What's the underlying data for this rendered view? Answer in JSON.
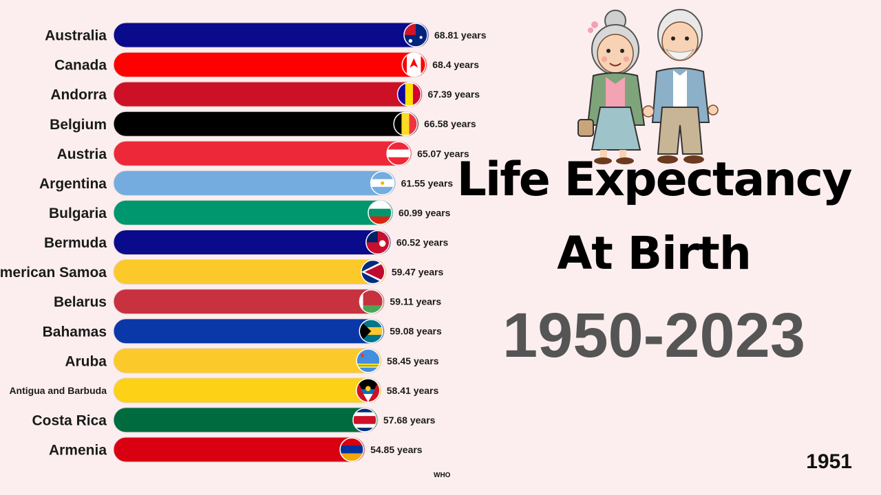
{
  "chart_data": {
    "type": "bar",
    "orientation": "horizontal",
    "title": "Life Expectancy At Birth",
    "title_line1": "Life Expectancy",
    "title_line2": "At Birth",
    "period": "1950-2023",
    "current_year": "1951",
    "source": "WHO",
    "unit_suffix": "years",
    "xlim": [
      0,
      68.81
    ],
    "grid": false,
    "legend": "none",
    "bars": [
      {
        "country": "Australia",
        "value": 68.81,
        "label": "68.81 years",
        "color": "#0a0a8c",
        "flag": "australia"
      },
      {
        "country": "Canada",
        "value": 68.4,
        "label": "68.4 years",
        "color": "#ff0000",
        "flag": "canada"
      },
      {
        "country": "Andorra",
        "value": 67.39,
        "label": "67.39 years",
        "color": "#cc1126",
        "flag": "andorra"
      },
      {
        "country": "Belgium",
        "value": 66.58,
        "label": "66.58 years",
        "color": "#000000",
        "flag": "belgium"
      },
      {
        "country": "Austria",
        "value": 65.07,
        "label": "65.07 years",
        "color": "#ed2939",
        "flag": "austria"
      },
      {
        "country": "Argentina",
        "value": 61.55,
        "label": "61.55 years",
        "color": "#74acdf",
        "flag": "argentina"
      },
      {
        "country": "Bulgaria",
        "value": 60.99,
        "label": "60.99 years",
        "color": "#00966e",
        "flag": "bulgaria"
      },
      {
        "country": "Bermuda",
        "value": 60.52,
        "label": "60.52 years",
        "color": "#0a0a8c",
        "flag": "bermuda"
      },
      {
        "country": "American Samoa",
        "value": 59.47,
        "label": "59.47 years",
        "color": "#fcc92b",
        "flag": "american-samoa"
      },
      {
        "country": "Belarus",
        "value": 59.11,
        "label": "59.11 years",
        "color": "#c8313e",
        "flag": "belarus"
      },
      {
        "country": "Bahamas",
        "value": 59.08,
        "label": "59.08 years",
        "color": "#0a38a8",
        "flag": "bahamas"
      },
      {
        "country": "Aruba",
        "value": 58.45,
        "label": "58.45 years",
        "color": "#fcc92b",
        "flag": "aruba"
      },
      {
        "country": "Antigua and Barbuda",
        "value": 58.41,
        "label": "58.41 years",
        "color": "#fcd116",
        "flag": "antigua"
      },
      {
        "country": "Costa Rica",
        "value": 57.68,
        "label": "57.68 years",
        "color": "#006b3f",
        "flag": "costa-rica"
      },
      {
        "country": "Armenia",
        "value": 54.85,
        "label": "54.85 years",
        "color": "#d90012",
        "flag": "armenia"
      }
    ]
  },
  "illustration": {
    "icon": "elderly-couple-illustration"
  }
}
